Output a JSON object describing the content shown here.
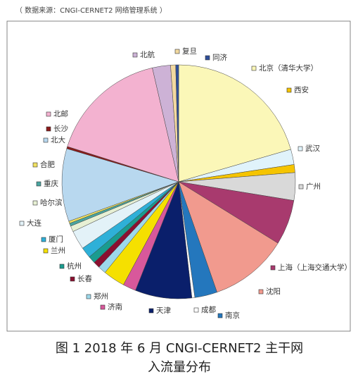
{
  "source": "（ 数据来源：CNGI-CERNET2 网络管理系统 ）",
  "caption": [
    "图 1 2018 年 6 月 CNGI-CERNET2 主干网",
    "入流量分布"
  ],
  "chart_data": {
    "type": "pie",
    "categories": [
      "北京（清华大学）",
      "武汉",
      "西安",
      "广州",
      "上海（上海交通大学）",
      "沈阳",
      "南京",
      "成都",
      "天津",
      "济南",
      "兰州",
      "郑州",
      "长春",
      "杭州",
      "厦门",
      "大连",
      "哈尔滨",
      "重庆",
      "合肥",
      "北大",
      "长沙",
      "北邮",
      "北航",
      "复旦",
      "同济"
    ],
    "values": [
      20.4,
      2.1,
      1.1,
      3.8,
      6.2,
      10.8,
      3.1,
      0.4,
      7.8,
      1.8,
      3.0,
      1.1,
      0.9,
      1.0,
      1.5,
      2.6,
      0.8,
      0.4,
      0.3,
      10.0,
      0.3,
      16.4,
      2.5,
      0.7,
      0.4
    ],
    "colors": [
      "#fbf7b8",
      "#e0f3fb",
      "#f5c400",
      "#d9d9d9",
      "#a83a6e",
      "#f19a8e",
      "#2477bd",
      "#ffffff",
      "#0a1f6b",
      "#d8589b",
      "#f5e000",
      "#9dd8ea",
      "#8a1030",
      "#1a9c8f",
      "#2eb0d8",
      "#e3f2f8",
      "#e7f0d4",
      "#4aa5a0",
      "#f0e060",
      "#b8d8ef",
      "#8b1a1a",
      "#f3b2d0",
      "#cdb2d6",
      "#f2d9a0",
      "#2f4f9a"
    ]
  }
}
